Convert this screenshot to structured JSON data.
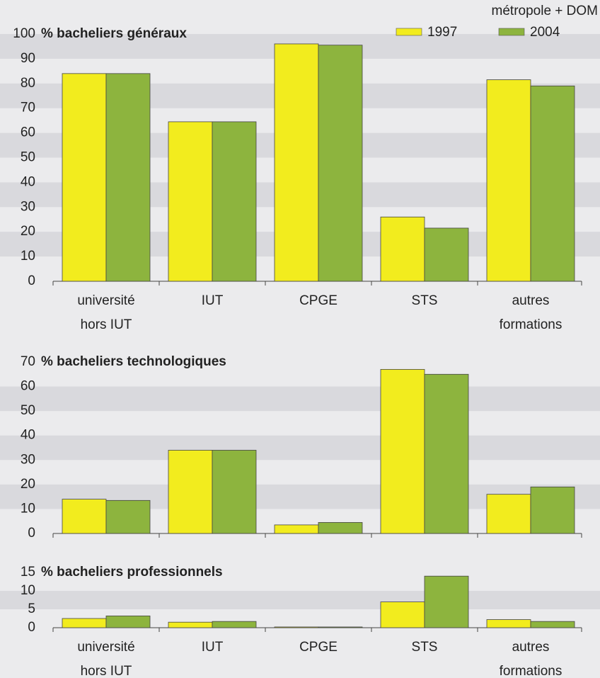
{
  "chart_data": [
    {
      "type": "bar",
      "title": "% bacheliers généraux",
      "note": "métropole + DOM",
      "categories": [
        [
          "université",
          "hors IUT"
        ],
        [
          "IUT"
        ],
        [
          "CPGE"
        ],
        [
          "STS"
        ],
        [
          "autres",
          "formations"
        ]
      ],
      "series": [
        {
          "name": "1997",
          "color": "#f2ec1e",
          "values": [
            84,
            64.5,
            96,
            26,
            81.5
          ]
        },
        {
          "name": "2004",
          "color": "#8db43e",
          "values": [
            84,
            64.5,
            95.5,
            21.5,
            79
          ]
        }
      ],
      "ylim": [
        0,
        100
      ],
      "yticks": [
        0,
        10,
        20,
        30,
        40,
        50,
        60,
        70,
        80,
        90,
        100
      ],
      "grid": "bands"
    },
    {
      "type": "bar",
      "title": "% bacheliers technologiques",
      "categories": [
        null,
        null,
        null,
        null,
        null
      ],
      "series": [
        {
          "name": "1997",
          "color": "#f2ec1e",
          "values": [
            14,
            34,
            3.5,
            67,
            16
          ]
        },
        {
          "name": "2004",
          "color": "#8db43e",
          "values": [
            13.5,
            34,
            4.5,
            65,
            19
          ]
        }
      ],
      "ylim": [
        0,
        70
      ],
      "yticks": [
        0,
        10,
        20,
        30,
        40,
        50,
        60,
        70
      ],
      "grid": "bands"
    },
    {
      "type": "bar",
      "title": "% bacheliers professionnels",
      "categories": [
        [
          "université",
          "hors IUT"
        ],
        [
          "IUT"
        ],
        [
          "CPGE"
        ],
        [
          "STS"
        ],
        [
          "autres",
          "formations"
        ]
      ],
      "series": [
        {
          "name": "1997",
          "color": "#f2ec1e",
          "values": [
            2.5,
            1.5,
            0.2,
            7,
            2.2
          ]
        },
        {
          "name": "2004",
          "color": "#8db43e",
          "values": [
            3.2,
            1.7,
            0.2,
            14,
            1.7
          ]
        }
      ],
      "ylim": [
        0,
        15
      ],
      "yticks": [
        0,
        5,
        10,
        15
      ],
      "grid": "bands"
    }
  ]
}
